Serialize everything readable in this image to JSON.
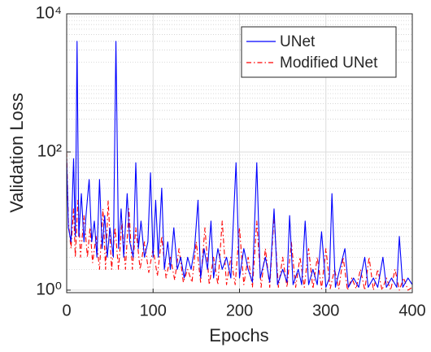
{
  "chart_data": {
    "type": "line",
    "xlabel": "Epochs",
    "ylabel": "Validation Loss",
    "xlim": [
      0,
      400
    ],
    "xticks": [
      0,
      100,
      200,
      300,
      400
    ],
    "ylim": [
      0.92,
      10000
    ],
    "log_y": true,
    "yticks": [
      {
        "value": 1,
        "label": "10⁰"
      },
      {
        "value": 100,
        "label": "10²"
      },
      {
        "value": 10000,
        "label": "10⁴"
      }
    ],
    "grid": true,
    "minor_grid": true,
    "legend": "upper right",
    "series": [
      {
        "name": "UNet",
        "color": "#0000ff",
        "dash": "solid",
        "x": [
          0,
          2,
          5,
          8,
          10,
          12,
          14,
          17,
          20,
          23,
          26,
          29,
          32,
          35,
          38,
          41,
          44,
          47,
          50,
          54,
          57,
          60,
          63,
          66,
          70,
          73,
          77,
          80,
          83,
          86,
          90,
          94,
          97,
          100,
          103,
          106,
          110,
          113,
          117,
          120,
          124,
          128,
          132,
          136,
          140,
          144,
          148,
          152,
          155,
          159,
          163,
          167,
          170,
          175,
          180,
          185,
          190,
          196,
          200,
          205,
          210,
          215,
          220,
          224,
          230,
          235,
          240,
          244,
          250,
          255,
          258,
          262,
          268,
          272,
          276,
          280,
          285,
          290,
          295,
          300,
          304,
          307,
          311,
          316,
          322,
          326,
          332,
          338,
          345,
          349,
          355,
          360,
          366,
          370,
          376,
          382,
          385,
          389,
          395,
          400
        ],
        "values": [
          80,
          8,
          5,
          80,
          6,
          4000,
          6,
          25,
          5,
          15,
          40,
          5,
          10,
          3,
          40,
          4,
          12,
          3,
          8,
          3,
          4000,
          4,
          15,
          3,
          25,
          5,
          3,
          70,
          4,
          10,
          3,
          5,
          50,
          3,
          20,
          3,
          30,
          2,
          5,
          2,
          8,
          2,
          3,
          1.5,
          3,
          2,
          4,
          20,
          1.5,
          4,
          2,
          10,
          1.5,
          4,
          2,
          3,
          1.5,
          70,
          1.5,
          4,
          2,
          1.3,
          70,
          1.5,
          3,
          1.3,
          15,
          1.2,
          2,
          1.3,
          12,
          1.2,
          2,
          1.2,
          10,
          1.2,
          2,
          1.2,
          7,
          1.1,
          1.5,
          25,
          1.1,
          2,
          4,
          1.1,
          1.5,
          1.1,
          3,
          1.1,
          1.5,
          1.1,
          3,
          1.1,
          1.5,
          1.1,
          6,
          1.1,
          1.5,
          1.2
        ]
      },
      {
        "name": "Modified UNet",
        "color": "#ff0000",
        "dash": "dashdot",
        "x": [
          0,
          2,
          5,
          8,
          10,
          13,
          16,
          20,
          24,
          27,
          30,
          34,
          38,
          42,
          45,
          48,
          52,
          56,
          60,
          64,
          68,
          72,
          76,
          80,
          85,
          90,
          95,
          100,
          105,
          110,
          115,
          120,
          125,
          130,
          135,
          140,
          145,
          150,
          155,
          160,
          165,
          170,
          175,
          180,
          185,
          190,
          195,
          200,
          205,
          210,
          215,
          220,
          225,
          230,
          235,
          240,
          245,
          250,
          255,
          260,
          265,
          270,
          275,
          280,
          285,
          290,
          295,
          300,
          305,
          310,
          315,
          320,
          325,
          330,
          335,
          340,
          345,
          350,
          355,
          360,
          365,
          370,
          375,
          380,
          385,
          390,
          395,
          400
        ],
        "values": [
          100,
          10,
          4,
          15,
          3,
          20,
          3,
          12,
          3,
          8,
          2.5,
          6,
          2,
          15,
          2,
          20,
          2,
          8,
          2,
          10,
          2,
          15,
          2,
          8,
          2,
          5,
          1.8,
          4,
          1.6,
          6,
          1.5,
          3,
          1.4,
          4,
          1.3,
          2,
          1.3,
          5,
          1.3,
          8,
          1.2,
          3,
          1.2,
          10,
          1.2,
          3,
          1.2,
          8,
          1.2,
          3,
          1.1,
          10,
          1.1,
          4,
          1.1,
          12,
          1.1,
          3,
          1.1,
          5,
          1.1,
          3,
          1.1,
          4,
          1.05,
          3,
          1.05,
          4,
          1.05,
          2,
          1.05,
          3,
          1,
          1.5,
          1.05,
          2,
          1,
          3,
          1,
          2,
          1,
          1.5,
          1,
          2,
          1,
          1.5,
          1,
          1.1
        ]
      }
    ]
  }
}
